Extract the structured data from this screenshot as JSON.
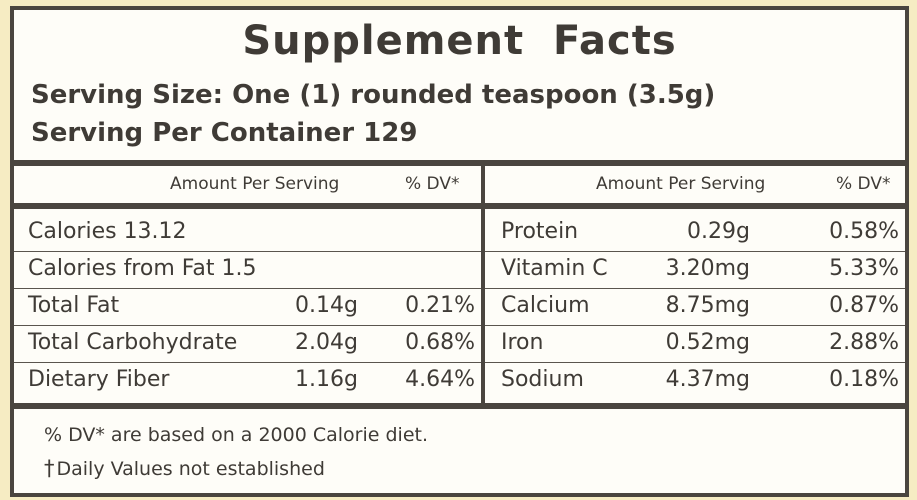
{
  "title": "Supplement Facts",
  "serving_size": "Serving Size: One (1) rounded teaspoon (3.5g)",
  "servings_per_container": "Serving Per Container 129",
  "left_header": {
    "amount": "Amount Per Serving",
    "dv": "% DV*"
  },
  "right_header": {
    "amount": "Amount Per Serving",
    "dv": "% DV*"
  },
  "left_rows": [
    {
      "name": "Calories 13.12",
      "amount": "",
      "dv": ""
    },
    {
      "name": "Calories from Fat 1.5",
      "amount": "",
      "dv": ""
    },
    {
      "name": "Total Fat",
      "amount": "0.14g",
      "dv": "0.21%"
    },
    {
      "name": "Total Carbohydrate",
      "amount": "2.04g",
      "dv": "0.68%"
    },
    {
      "name": "Dietary Fiber",
      "amount": "1.16g",
      "dv": "4.64%"
    }
  ],
  "right_rows": [
    {
      "name": "Protein",
      "amount": "0.29g",
      "dv": "0.58%"
    },
    {
      "name": "Vitamin C",
      "amount": "3.20mg",
      "dv": "5.33%"
    },
    {
      "name": "Calcium",
      "amount": "8.75mg",
      "dv": "0.87%"
    },
    {
      "name": "Iron",
      "amount": "0.52mg",
      "dv": "2.88%"
    },
    {
      "name": "Sodium",
      "amount": "4.37mg",
      "dv": "0.18%"
    }
  ],
  "footnotes": {
    "dv_basis": "% DV* are based on a 2000 Calorie diet.",
    "dagger_symbol": "†",
    "not_established": "Daily Values not established"
  },
  "colors": {
    "background": "#f6ecc3",
    "panel": "#fefdf8",
    "ink": "#3f3b36",
    "rule": "#4a453f"
  }
}
